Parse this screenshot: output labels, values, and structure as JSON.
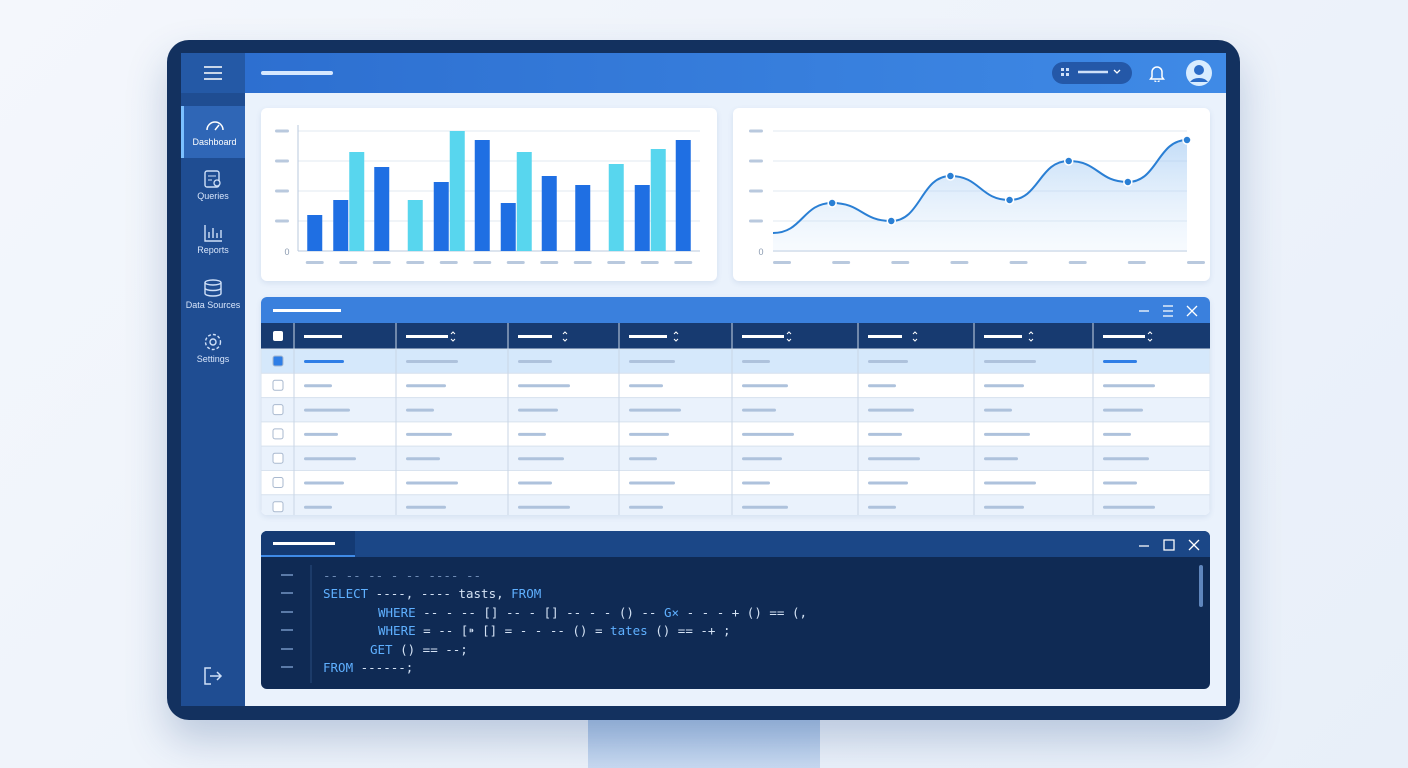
{
  "sidebar": {
    "items": [
      "Dashboard",
      "Queries",
      "Reports",
      "Data Sources",
      "Settings"
    ]
  },
  "chart_data": [
    {
      "type": "bar",
      "categories": [
        null,
        null,
        null,
        null,
        null,
        null,
        null,
        null,
        null,
        null,
        null,
        null
      ],
      "series": [
        {
          "color": "#1f6fe3",
          "values": [
            1.2,
            1.7,
            2.8,
            null,
            2.3,
            3.7,
            1.6,
            2.5,
            2.2,
            null,
            2.2,
            3.7
          ]
        },
        {
          "color": "#58d6ee",
          "values": [
            null,
            3.3,
            null,
            1.7,
            4.0,
            null,
            3.3,
            null,
            null,
            2.9,
            3.4,
            null
          ]
        }
      ],
      "ylim": [
        0,
        4.2
      ],
      "yticks": [
        0,
        {
          "value": 1,
          "label": null
        },
        {
          "value": 2,
          "label": null
        },
        {
          "value": 3,
          "label": null
        },
        {
          "value": 4,
          "label": null
        }
      ],
      "grid": true
    },
    {
      "type": "line",
      "categories": [
        null,
        null,
        null,
        null,
        null,
        null,
        null,
        null
      ],
      "series": [
        {
          "color": "#2a7fd4",
          "values": [
            0.6,
            1.6,
            1.0,
            2.5,
            1.7,
            3.0,
            2.3,
            3.7
          ]
        }
      ],
      "ylim": [
        0,
        4.2
      ],
      "yticks": [
        0,
        {
          "value": 1,
          "label": null
        },
        {
          "value": 2,
          "label": null
        },
        {
          "value": 3,
          "label": null
        },
        {
          "value": 4,
          "label": null
        }
      ],
      "grid": true,
      "area": true
    }
  ],
  "code": {
    "lines": [
      [
        "-- -- -- - -- ---- --"
      ],
      [
        "SELECT",
        " ----, ---- tasts, ",
        "FROM"
      ],
      [
        "WHERE",
        " -- - -- [] -- - [] -- - - () -- ",
        "G×",
        " - - - + () == (,"
      ],
      [
        "WHERE",
        " = -- [⁍ [] = - - -- () = ",
        "tates",
        " () == -+ ;"
      ],
      [
        "GET",
        " () == --;"
      ],
      [
        "FROM",
        " ------;"
      ]
    ]
  }
}
